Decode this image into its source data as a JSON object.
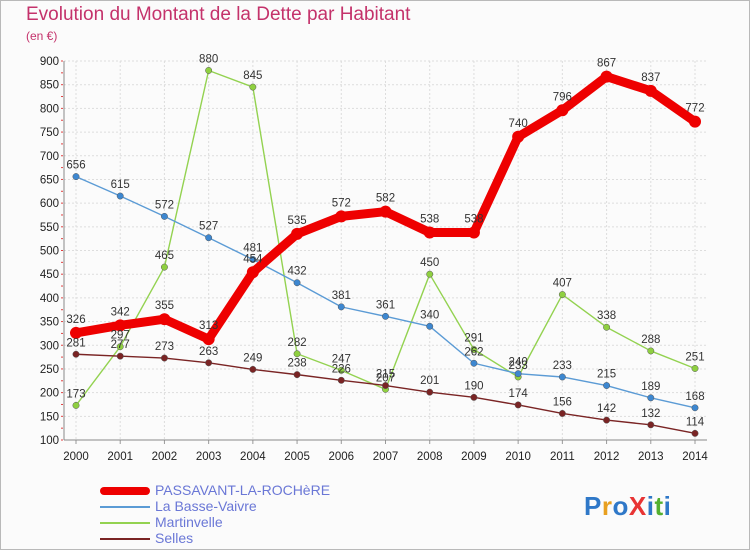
{
  "title": "Evolution du Montant de la Dette par Habitant",
  "unit_label": "(en €)",
  "brand": {
    "text": "ProXiti",
    "letters": [
      "P",
      "r",
      "o",
      "X",
      "i",
      "t",
      "i"
    ],
    "colors": [
      "#2f78c8",
      "#e8a020",
      "#2f78c8",
      "#e83434",
      "#2f78c8",
      "#54b030",
      "#2f78c8"
    ]
  },
  "chart_data": {
    "type": "line",
    "title": "Evolution du Montant de la Dette par Habitant",
    "ylabel": "(en €)",
    "xlabel": "",
    "x": [
      "2000",
      "2001",
      "2002",
      "2003",
      "2004",
      "2005",
      "2006",
      "2007",
      "2008",
      "2009",
      "2010",
      "2011",
      "2012",
      "2013",
      "2014"
    ],
    "ylim": [
      100,
      900
    ],
    "yticks": [
      100,
      150,
      200,
      250,
      300,
      350,
      400,
      450,
      500,
      550,
      600,
      650,
      700,
      750,
      800,
      850,
      900
    ],
    "grid": true,
    "legend_position": "bottom-left",
    "series": [
      {
        "name": "PASSAVANT-LA-ROCHèRE",
        "color": "#ee0000",
        "values": [
          326,
          342,
          355,
          313,
          454,
          535,
          572,
          582,
          538,
          538,
          740,
          796,
          867,
          837,
          772
        ]
      },
      {
        "name": "La Basse-Vaivre",
        "color": "#5b9bd5",
        "values": [
          656,
          615,
          572,
          527,
          481,
          432,
          381,
          361,
          340,
          262,
          240,
          233,
          215,
          189,
          168
        ]
      },
      {
        "name": "Martinvelle",
        "color": "#93d250",
        "values": [
          173,
          297,
          465,
          880,
          845,
          282,
          247,
          207,
          450,
          291,
          233,
          407,
          338,
          288,
          251
        ]
      },
      {
        "name": "Selles",
        "color": "#7a2424",
        "values": [
          281,
          277,
          273,
          263,
          249,
          238,
          226,
          215,
          201,
          190,
          174,
          156,
          142,
          132,
          114
        ]
      }
    ]
  }
}
